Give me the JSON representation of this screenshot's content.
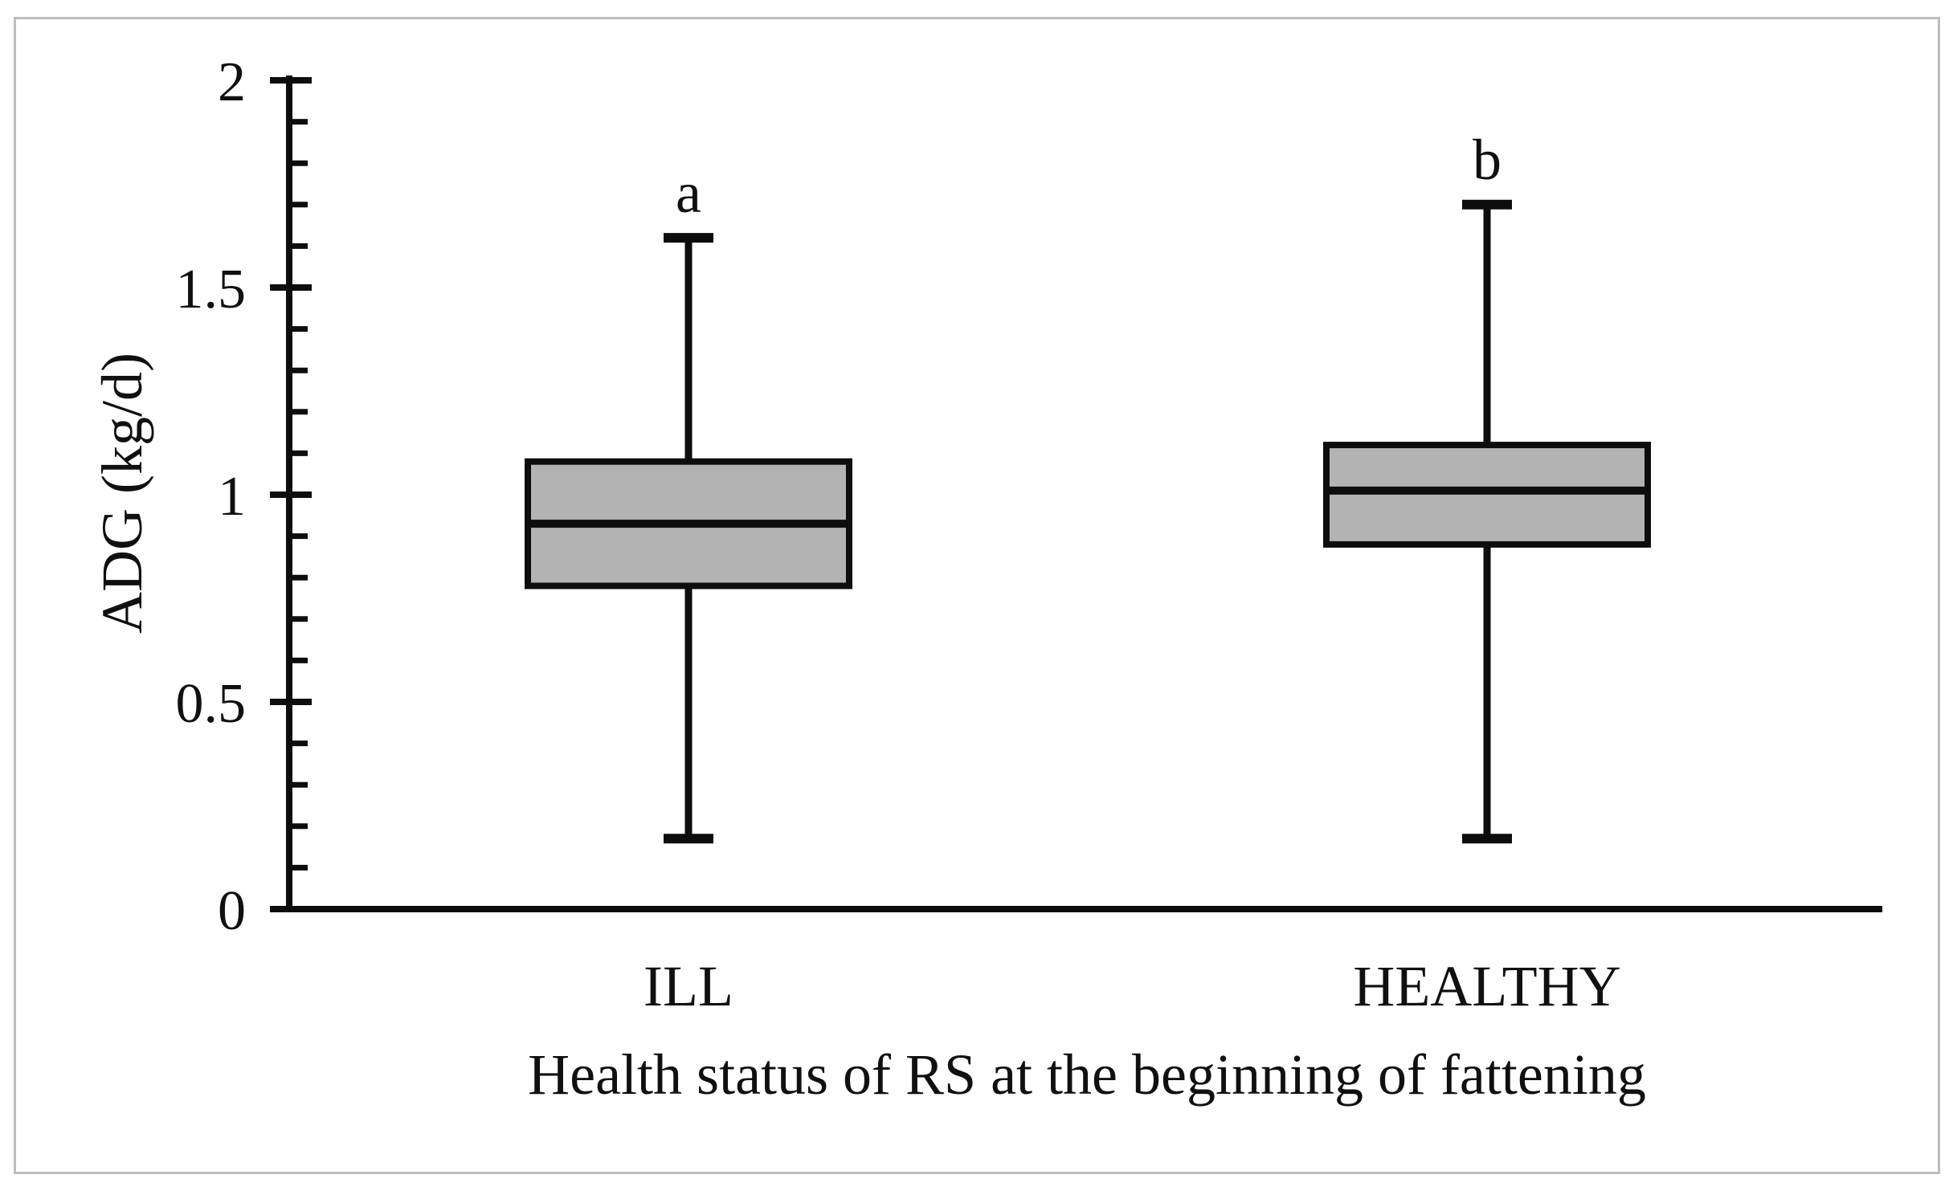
{
  "figure": {
    "background": "#ffffff",
    "border_color": "#bdbdbd"
  },
  "chart_data": {
    "type": "boxplot",
    "title": "",
    "xlabel": "Health status of RS at the beginning of fattening",
    "ylabel": "ADG (kg/d)",
    "ylim": [
      0,
      2
    ],
    "grid": "off",
    "legend": "none",
    "y_major_ticks": [
      {
        "value": 0,
        "label": "0"
      },
      {
        "value": 0.5,
        "label": "0.5"
      },
      {
        "value": 1,
        "label": "1"
      },
      {
        "value": 1.5,
        "label": "1.5"
      },
      {
        "value": 2,
        "label": "2"
      }
    ],
    "y_minor_tick_step": 0.1,
    "categories": [
      "ILL",
      "HEALTHY"
    ],
    "series": [
      {
        "category": "ILL",
        "significance_letter": "a",
        "whisker_low": 0.17,
        "q1": 0.78,
        "median": 0.93,
        "q3": 1.08,
        "whisker_high": 1.62
      },
      {
        "category": "HEALTHY",
        "significance_letter": "b",
        "whisker_low": 0.17,
        "q1": 0.88,
        "median": 1.01,
        "q3": 1.12,
        "whisker_high": 1.7
      }
    ],
    "colors": {
      "box_fill": "#b3b3b3",
      "line": "#0d0d0d",
      "background": "#ffffff"
    }
  }
}
